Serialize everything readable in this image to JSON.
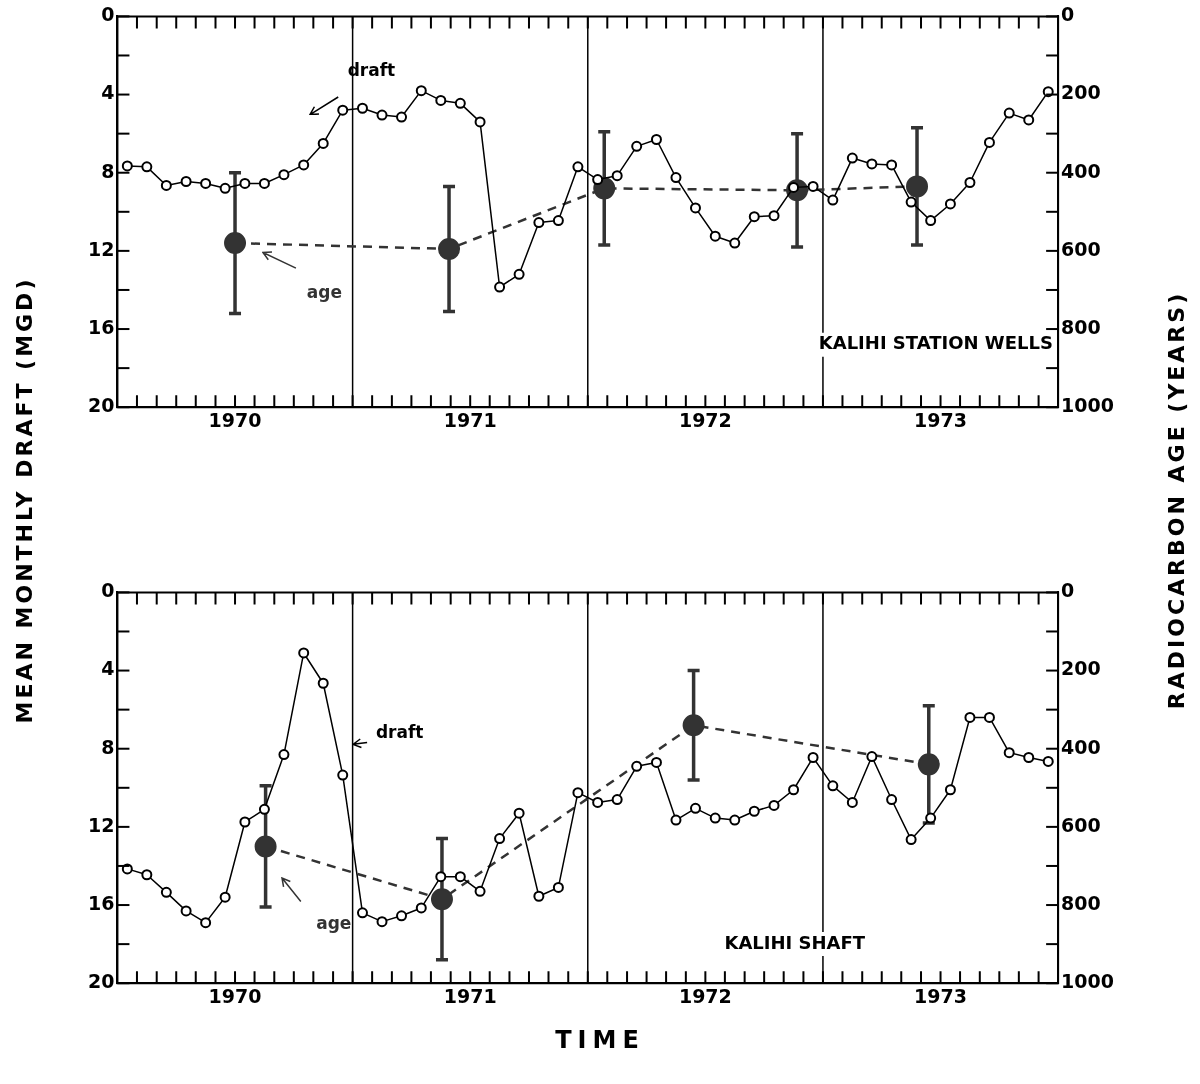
{
  "chart_data": [
    {
      "type": "line",
      "ylabel": "MEAN MONTHLY DRAFT (MGD)",
      "y2label": "RADIOCARBON AGE (YEARS)",
      "annotations": [
        "KALIHI STATION WELLS"
      ],
      "x": [
        1970.042,
        1970.125,
        1970.208,
        1970.292,
        1970.375,
        1970.458,
        1970.542,
        1970.625,
        1970.708,
        1970.792,
        1970.875,
        1970.958,
        1971.042,
        1971.125,
        1971.208,
        1971.292,
        1971.375,
        1971.458,
        1971.542,
        1971.625,
        1971.708,
        1971.792,
        1971.875,
        1971.958,
        1972.042,
        1972.125,
        1972.208,
        1972.292,
        1972.375,
        1972.458,
        1972.542,
        1972.625,
        1972.708,
        1972.792,
        1972.875,
        1972.958,
        1973.042,
        1973.125,
        1973.208,
        1973.292,
        1973.375,
        1973.458,
        1973.542,
        1973.625,
        1973.708,
        1973.792,
        1973.875,
        1973.958
      ],
      "series": [
        {
          "name": "draft",
          "type": "line",
          "color": "#000000",
          "marker": "circle",
          "line_style": "solid",
          "values": [
            7.65,
            7.7,
            8.65,
            8.45,
            8.55,
            8.8,
            8.55,
            8.55,
            8.1,
            7.6,
            6.5,
            4.8,
            4.7,
            5.05,
            5.15,
            3.8,
            4.3,
            4.45,
            5.4,
            13.85,
            13.2,
            10.55,
            10.45,
            7.7,
            8.35,
            8.15,
            6.65,
            6.3,
            8.25,
            9.8,
            11.25,
            11.6,
            10.25,
            10.2,
            8.75,
            8.7,
            9.4,
            7.25,
            7.55,
            7.6,
            9.5,
            10.45,
            9.6,
            8.5,
            6.45,
            4.95,
            5.3,
            3.85
          ]
        },
        {
          "name": "age",
          "type": "line",
          "axis": "y2",
          "color": "#333333",
          "marker": "circle",
          "line_style": "dashed",
          "x": [
            1970.5,
            1971.41,
            1972.07,
            1972.89,
            1973.4
          ],
          "values": [
            580,
            595,
            440,
            445,
            435
          ],
          "errors": [
            180,
            160,
            145,
            145,
            150
          ]
        }
      ],
      "xlim": [
        1970,
        1974
      ],
      "xticks": [
        {
          "value": 1970.083,
          "label": null
        },
        {
          "value": 1970.167,
          "label": null
        },
        {
          "value": 1970.25,
          "label": null
        },
        {
          "value": 1970.333,
          "label": null
        },
        {
          "value": 1970.417,
          "label": null
        },
        {
          "value": 1970.5,
          "label": "1970"
        },
        {
          "value": 1970.583,
          "label": null
        },
        {
          "value": 1970.667,
          "label": null
        },
        {
          "value": 1970.75,
          "label": null
        },
        {
          "value": 1970.833,
          "label": null
        },
        {
          "value": 1970.917,
          "label": null
        },
        {
          "value": 1971,
          "label": null
        },
        {
          "value": 1971.083,
          "label": null
        },
        {
          "value": 1971.167,
          "label": null
        },
        {
          "value": 1971.25,
          "label": null
        },
        {
          "value": 1971.333,
          "label": null
        },
        {
          "value": 1971.417,
          "label": null
        },
        {
          "value": 1971.5,
          "label": "1971"
        },
        {
          "value": 1971.583,
          "label": null
        },
        {
          "value": 1971.667,
          "label": null
        },
        {
          "value": 1971.75,
          "label": null
        },
        {
          "value": 1971.833,
          "label": null
        },
        {
          "value": 1971.917,
          "label": null
        },
        {
          "value": 1972,
          "label": null
        },
        {
          "value": 1972.083,
          "label": null
        },
        {
          "value": 1972.167,
          "label": null
        },
        {
          "value": 1972.25,
          "label": null
        },
        {
          "value": 1972.333,
          "label": null
        },
        {
          "value": 1972.417,
          "label": null
        },
        {
          "value": 1972.5,
          "label": "1972"
        },
        {
          "value": 1972.583,
          "label": null
        },
        {
          "value": 1972.667,
          "label": null
        },
        {
          "value": 1972.75,
          "label": null
        },
        {
          "value": 1972.833,
          "label": null
        },
        {
          "value": 1972.917,
          "label": null
        },
        {
          "value": 1973,
          "label": null
        },
        {
          "value": 1973.083,
          "label": null
        },
        {
          "value": 1973.167,
          "label": null
        },
        {
          "value": 1973.25,
          "label": null
        },
        {
          "value": 1973.333,
          "label": null
        },
        {
          "value": 1973.417,
          "label": null
        },
        {
          "value": 1973.5,
          "label": "1973"
        },
        {
          "value": 1973.583,
          "label": null
        },
        {
          "value": 1973.667,
          "label": null
        },
        {
          "value": 1973.75,
          "label": null
        },
        {
          "value": 1973.833,
          "label": null
        },
        {
          "value": 1973.917,
          "label": null
        }
      ],
      "ylim": [
        20,
        0
      ],
      "yticks": [
        0,
        {
          "value": 2,
          "label": null
        },
        4,
        {
          "value": 6,
          "label": null
        },
        8,
        {
          "value": 10,
          "label": null
        },
        12,
        {
          "value": 14,
          "label": null
        },
        16,
        {
          "value": 18,
          "label": null
        },
        20
      ],
      "y2lim": [
        1000,
        0
      ],
      "y2ticks": [
        0,
        {
          "value": 100,
          "label": null
        },
        200,
        {
          "value": 300,
          "label": null
        },
        400,
        {
          "value": 500,
          "label": null
        },
        600,
        {
          "value": 700,
          "label": null
        },
        800,
        {
          "value": 900,
          "label": null
        },
        1000
      ],
      "ref_lines": [
        {
          "axis": "x",
          "value": 1971,
          "color": "#000000"
        },
        {
          "axis": "x",
          "value": 1972,
          "color": "#000000"
        },
        {
          "axis": "x",
          "value": 1973,
          "color": "#000000"
        }
      ],
      "grid": false,
      "legend": false
    },
    {
      "type": "line",
      "xlabel": "TIME",
      "annotations": [
        "KALIHI SHAFT"
      ],
      "x": [
        1970.042,
        1970.125,
        1970.208,
        1970.292,
        1970.375,
        1970.458,
        1970.542,
        1970.625,
        1970.708,
        1970.792,
        1970.875,
        1970.958,
        1971.042,
        1971.125,
        1971.208,
        1971.292,
        1971.375,
        1971.458,
        1971.542,
        1971.625,
        1971.708,
        1971.792,
        1971.875,
        1971.958,
        1972.042,
        1972.125,
        1972.208,
        1972.292,
        1972.375,
        1972.458,
        1972.542,
        1972.625,
        1972.708,
        1972.792,
        1972.875,
        1972.958,
        1973.042,
        1973.125,
        1973.208,
        1973.292,
        1973.375,
        1973.458,
        1973.542,
        1973.625,
        1973.708,
        1973.792,
        1973.875,
        1973.958
      ],
      "series": [
        {
          "name": "draft",
          "type": "line",
          "color": "#000000",
          "marker": "circle",
          "line_style": "solid",
          "values": [
            14.15,
            14.45,
            15.35,
            16.3,
            16.9,
            15.6,
            11.75,
            11.1,
            8.3,
            3.1,
            4.65,
            9.35,
            16.4,
            16.85,
            16.55,
            16.15,
            14.55,
            14.55,
            15.3,
            12.6,
            11.3,
            15.55,
            15.1,
            10.25,
            10.75,
            10.6,
            8.9,
            8.7,
            11.65,
            11.05,
            11.55,
            11.65,
            11.2,
            10.9,
            10.1,
            8.45,
            9.9,
            10.75,
            8.4,
            10.6,
            12.65,
            11.55,
            10.1,
            6.4,
            6.4,
            8.2,
            8.45,
            8.65
          ]
        },
        {
          "name": "age",
          "type": "line",
          "axis": "y2",
          "color": "#333333",
          "marker": "circle",
          "line_style": "dashed",
          "x": [
            1970.63,
            1971.38,
            1972.45,
            1973.45
          ],
          "values": [
            650,
            785,
            340,
            440
          ],
          "errors": [
            155,
            155,
            140,
            150
          ]
        }
      ],
      "xlim": [
        1970,
        1974
      ],
      "xticks": [
        {
          "value": 1970.083,
          "label": null
        },
        {
          "value": 1970.167,
          "label": null
        },
        {
          "value": 1970.25,
          "label": null
        },
        {
          "value": 1970.333,
          "label": null
        },
        {
          "value": 1970.417,
          "label": null
        },
        {
          "value": 1970.5,
          "label": "1970"
        },
        {
          "value": 1970.583,
          "label": null
        },
        {
          "value": 1970.667,
          "label": null
        },
        {
          "value": 1970.75,
          "label": null
        },
        {
          "value": 1970.833,
          "label": null
        },
        {
          "value": 1970.917,
          "label": null
        },
        {
          "value": 1971,
          "label": null
        },
        {
          "value": 1971.083,
          "label": null
        },
        {
          "value": 1971.167,
          "label": null
        },
        {
          "value": 1971.25,
          "label": null
        },
        {
          "value": 1971.333,
          "label": null
        },
        {
          "value": 1971.417,
          "label": null
        },
        {
          "value": 1971.5,
          "label": "1971"
        },
        {
          "value": 1971.583,
          "label": null
        },
        {
          "value": 1971.667,
          "label": null
        },
        {
          "value": 1971.75,
          "label": null
        },
        {
          "value": 1971.833,
          "label": null
        },
        {
          "value": 1971.917,
          "label": null
        },
        {
          "value": 1972,
          "label": null
        },
        {
          "value": 1972.083,
          "label": null
        },
        {
          "value": 1972.167,
          "label": null
        },
        {
          "value": 1972.25,
          "label": null
        },
        {
          "value": 1972.333,
          "label": null
        },
        {
          "value": 1972.417,
          "label": null
        },
        {
          "value": 1972.5,
          "label": "1972"
        },
        {
          "value": 1972.583,
          "label": null
        },
        {
          "value": 1972.667,
          "label": null
        },
        {
          "value": 1972.75,
          "label": null
        },
        {
          "value": 1972.833,
          "label": null
        },
        {
          "value": 1972.917,
          "label": null
        },
        {
          "value": 1973,
          "label": null
        },
        {
          "value": 1973.083,
          "label": null
        },
        {
          "value": 1973.167,
          "label": null
        },
        {
          "value": 1973.25,
          "label": null
        },
        {
          "value": 1973.333,
          "label": null
        },
        {
          "value": 1973.417,
          "label": null
        },
        {
          "value": 1973.5,
          "label": "1973"
        },
        {
          "value": 1973.583,
          "label": null
        },
        {
          "value": 1973.667,
          "label": null
        },
        {
          "value": 1973.75,
          "label": null
        },
        {
          "value": 1973.833,
          "label": null
        },
        {
          "value": 1973.917,
          "label": null
        }
      ],
      "ylim": [
        20,
        0
      ],
      "yticks": [
        0,
        {
          "value": 2,
          "label": null
        },
        4,
        {
          "value": 6,
          "label": null
        },
        8,
        {
          "value": 10,
          "label": null
        },
        12,
        {
          "value": 14,
          "label": null
        },
        16,
        {
          "value": 18,
          "label": null
        },
        20
      ],
      "y2lim": [
        1000,
        0
      ],
      "y2ticks": [
        0,
        {
          "value": 100,
          "label": null
        },
        200,
        {
          "value": 300,
          "label": null
        },
        400,
        {
          "value": 500,
          "label": null
        },
        600,
        {
          "value": 700,
          "label": null
        },
        800,
        {
          "value": 900,
          "label": null
        },
        1000
      ],
      "ref_lines": [
        {
          "axis": "x",
          "value": 1971,
          "color": "#000000"
        },
        {
          "axis": "x",
          "value": 1972,
          "color": "#000000"
        },
        {
          "axis": "x",
          "value": 1973,
          "color": "#000000"
        }
      ],
      "grid": false,
      "legend": false
    }
  ]
}
